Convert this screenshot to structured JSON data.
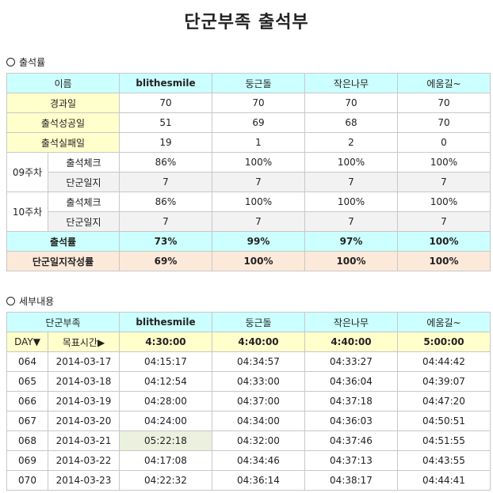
{
  "title": "단군부족 출석부",
  "attendance": {
    "section_label": "출석률",
    "header": [
      "이름",
      "blithesmile",
      "둥근돌",
      "작은나무",
      "에움길~"
    ],
    "elapsed": {
      "label": "경과일",
      "values": [
        "70",
        "70",
        "70",
        "70"
      ]
    },
    "success": {
      "label": "출석성공일",
      "values": [
        "51",
        "69",
        "68",
        "70"
      ]
    },
    "fail": {
      "label": "출석실패일",
      "values": [
        "19",
        "1",
        "2",
        "0"
      ]
    },
    "weeks": [
      {
        "week": "09주차",
        "check": {
          "label": "출석체크",
          "values": [
            "86%",
            "100%",
            "100%",
            "100%"
          ]
        },
        "log": {
          "label": "단군일지",
          "values": [
            "7",
            "7",
            "7",
            "7"
          ]
        }
      },
      {
        "week": "10주차",
        "check": {
          "label": "출석체크",
          "values": [
            "86%",
            "100%",
            "100%",
            "100%"
          ]
        },
        "log": {
          "label": "단군일지",
          "values": [
            "7",
            "7",
            "7",
            "7"
          ]
        }
      }
    ],
    "rate": {
      "label": "출석률",
      "values": [
        "73%",
        "99%",
        "97%",
        "100%"
      ]
    },
    "log_rate": {
      "label": "단군일지작성률",
      "values": [
        "69%",
        "100%",
        "100%",
        "100%"
      ]
    }
  },
  "details": {
    "section_label": "세부내용",
    "header": [
      "단군부족",
      "blithesmile",
      "둥근돌",
      "작은나무",
      "에움길~"
    ],
    "target_row": {
      "day_label": "DAY▼",
      "target_label": "목표시간▶",
      "values": [
        "4:30:00",
        "4:40:00",
        "4:40:00",
        "5:00:00"
      ]
    },
    "rows": [
      {
        "day": "064",
        "date": "2014-03-17",
        "times": [
          "04:15:17",
          "04:34:57",
          "04:33:27",
          "04:44:42"
        ]
      },
      {
        "day": "065",
        "date": "2014-03-18",
        "times": [
          "04:12:54",
          "04:33:00",
          "04:36:04",
          "04:39:07"
        ]
      },
      {
        "day": "066",
        "date": "2014-03-19",
        "times": [
          "04:28:00",
          "04:37:00",
          "04:37:18",
          "04:47:20"
        ]
      },
      {
        "day": "067",
        "date": "2014-03-20",
        "times": [
          "04:24:00",
          "04:34:00",
          "04:36:03",
          "04:50:51"
        ]
      },
      {
        "day": "068",
        "date": "2014-03-21",
        "times": [
          "05:22:18",
          "04:32:00",
          "04:37:46",
          "04:51:55"
        ]
      },
      {
        "day": "069",
        "date": "2014-03-22",
        "times": [
          "04:17:08",
          "04:34:46",
          "04:37:13",
          "04:43:55"
        ]
      },
      {
        "day": "070",
        "date": "2014-03-23",
        "times": [
          "04:22:32",
          "04:36:14",
          "04:38:17",
          "04:44:41"
        ]
      }
    ]
  }
}
